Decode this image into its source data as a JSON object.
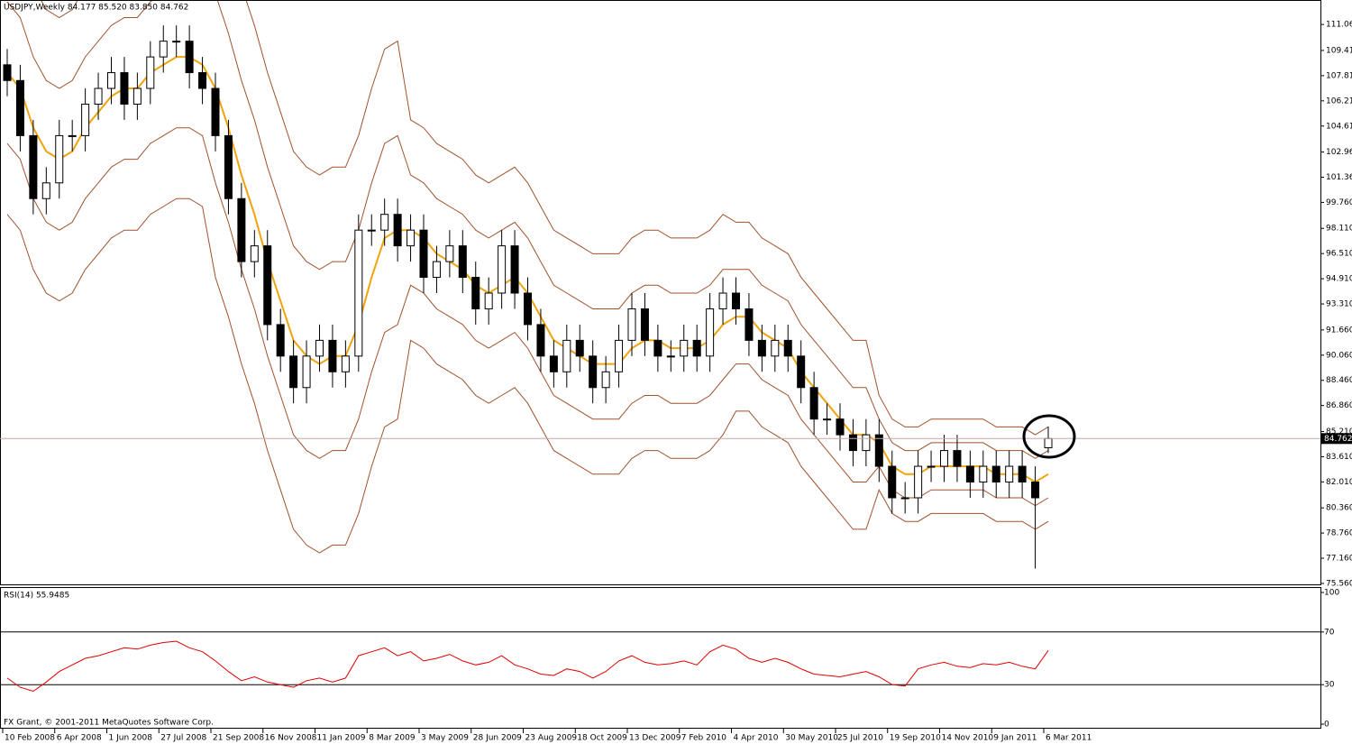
{
  "chart_data": [
    {
      "type": "candlestick",
      "title": "USDJPY,Weekly  84.177 85.520 83.850 84.762",
      "footer": "FX Grant, © 2001-2011 MetaQuotes Software Corp.",
      "categories": [
        "10 Feb 2008",
        null,
        null,
        null,
        "6 Apr 2008",
        null,
        null,
        null,
        "1 Jun 2008",
        null,
        null,
        null,
        "27 Jul 2008",
        null,
        null,
        null,
        "21 Sep 2008",
        null,
        null,
        null,
        "16 Nov 2008",
        null,
        null,
        null,
        "11 Jan 2009",
        null,
        null,
        null,
        "8 Mar 2009",
        null,
        null,
        null,
        "3 May 2009",
        null,
        null,
        null,
        "28 Jun 2009",
        null,
        null,
        null,
        "23 Aug 2009",
        null,
        null,
        null,
        "18 Oct 2009",
        null,
        null,
        null,
        "13 Dec 2009",
        null,
        null,
        null,
        "7 Feb 2010",
        null,
        null,
        null,
        "4 Apr 2010",
        null,
        null,
        null,
        "30 May 2010",
        null,
        null,
        null,
        "25 Jul 2010",
        null,
        null,
        null,
        "19 Sep 2010",
        null,
        null,
        null,
        "14 Nov 2010",
        null,
        null,
        null,
        "9 Jan 2011",
        null,
        null,
        null,
        "6 Mar 2011"
      ],
      "open": [
        108.5,
        107.5,
        104,
        100,
        101,
        104,
        104,
        106,
        107,
        108,
        106,
        107,
        109,
        110,
        110,
        108,
        107,
        104,
        100,
        96,
        97,
        92,
        90,
        88,
        90,
        91,
        89,
        90,
        98,
        98,
        99,
        97,
        98,
        95,
        96,
        97,
        95,
        93,
        94,
        97,
        94,
        92,
        90,
        89,
        91,
        90,
        88,
        89,
        91,
        93,
        91,
        90,
        90,
        91,
        90,
        93,
        94,
        93,
        91,
        90,
        91,
        90,
        88,
        86,
        86,
        85,
        84,
        85,
        83,
        81,
        81,
        83,
        83,
        84,
        83,
        82,
        83,
        82,
        83,
        82,
        84.177
      ],
      "high": [
        109.5,
        108.5,
        105,
        102,
        105,
        105,
        107,
        108,
        109,
        109,
        108,
        110,
        111,
        111,
        111,
        109,
        108,
        105,
        101,
        98,
        98,
        93,
        91,
        91,
        92,
        92,
        91,
        99,
        99,
        100,
        100,
        99,
        99,
        97,
        98,
        98,
        96,
        95,
        98,
        98,
        95,
        93,
        91,
        92,
        92,
        91,
        90,
        92,
        94,
        94,
        92,
        91,
        92,
        92,
        94,
        95,
        95,
        94,
        92,
        92,
        92,
        91,
        89,
        87,
        87,
        86,
        86,
        86,
        84,
        82,
        84,
        84,
        85,
        85,
        84,
        84,
        84,
        84,
        84,
        83,
        85.52
      ],
      "low": [
        106.5,
        103,
        99,
        99,
        100,
        103,
        103,
        105,
        106,
        105,
        105,
        106,
        108,
        109,
        107,
        106,
        103,
        99,
        95,
        95,
        91,
        89,
        87,
        87,
        89,
        88,
        88,
        89,
        97,
        97,
        96,
        96,
        94,
        94,
        95,
        94,
        92,
        92,
        93,
        93,
        91,
        89,
        88,
        88,
        89,
        87,
        87,
        88,
        90,
        90,
        89,
        89,
        89,
        89,
        89,
        92,
        92,
        90,
        89,
        89,
        89,
        87,
        85,
        85,
        84,
        83,
        83,
        82,
        80,
        80,
        80,
        82,
        82,
        82,
        81,
        81,
        81,
        81,
        81,
        76.5,
        83.85
      ],
      "close": [
        107.5,
        104,
        100,
        101,
        104,
        104,
        106,
        107,
        108,
        106,
        107,
        109,
        110,
        110,
        108,
        107,
        104,
        100,
        96,
        97,
        92,
        90,
        88,
        90,
        91,
        89,
        90,
        98,
        98,
        99,
        97,
        98,
        95,
        96,
        97,
        95,
        93,
        94,
        97,
        94,
        92,
        90,
        89,
        91,
        90,
        88,
        89,
        91,
        93,
        91,
        90,
        90,
        91,
        90,
        93,
        94,
        93,
        91,
        90,
        91,
        90,
        88,
        86,
        86,
        85,
        84,
        85,
        83,
        81,
        81,
        83,
        83,
        84,
        83,
        82,
        83,
        82,
        83,
        82,
        81,
        84.762
      ],
      "overlays": [
        {
          "color": "#f0a30a",
          "values": [
            108,
            107,
            104.5,
            103,
            102.5,
            103,
            104.5,
            105.5,
            106.5,
            107,
            107,
            108,
            108.5,
            109,
            109,
            108.5,
            107,
            104.5,
            101.5,
            99,
            96,
            93.5,
            91,
            90,
            89.5,
            90,
            90,
            92,
            95,
            97.5,
            98,
            98,
            97.5,
            96.5,
            96,
            95.5,
            94.5,
            94,
            94.5,
            95,
            94,
            92.5,
            91,
            90.5,
            90,
            89.5,
            89.5,
            89.5,
            90.5,
            91,
            91,
            90.5,
            90.5,
            90.5,
            91,
            92,
            92.5,
            92.5,
            91.5,
            91,
            90.5,
            89,
            88,
            87,
            86,
            85,
            85,
            84.5,
            83,
            82.5,
            82.5,
            83,
            83,
            83,
            83,
            83,
            82.5,
            82.5,
            82.5,
            82,
            82.5
          ]
        },
        {
          "color": "#a0522d",
          "values": [
            112.5,
            111.5,
            109,
            107.5,
            107,
            107.5,
            109,
            110,
            111,
            111.5,
            111.5,
            112.5,
            113,
            113.5,
            113.5,
            113,
            113,
            110.5,
            107.5,
            105,
            102,
            99.5,
            97,
            96,
            95.5,
            96,
            96,
            98,
            101,
            103.5,
            104,
            101.5,
            101,
            100,
            99.5,
            99,
            98,
            97.5,
            98,
            98.5,
            97.5,
            96,
            94.5,
            94,
            93.5,
            93,
            93,
            93,
            94,
            94.5,
            94.5,
            94,
            94,
            94,
            94.5,
            95.5,
            95.5,
            95.5,
            94.5,
            94,
            93.5,
            92,
            91,
            90,
            89,
            88,
            88,
            86,
            84.5,
            84,
            84,
            84.5,
            84.5,
            84.5,
            84.5,
            84.5,
            84,
            84,
            84,
            83.5,
            84
          ]
        },
        {
          "color": "#a0522d",
          "values": [
            103.5,
            102.5,
            100,
            98.5,
            98,
            98.5,
            100,
            101,
            102,
            102.5,
            102.5,
            103.5,
            104,
            104.5,
            104.5,
            104,
            101,
            98.5,
            95.5,
            93,
            90,
            87.5,
            85,
            84,
            83.5,
            84,
            84,
            86,
            89,
            91.5,
            92,
            94.5,
            94,
            93,
            92.5,
            92,
            91,
            90.5,
            91,
            91.5,
            90.5,
            89,
            87.5,
            87,
            86.5,
            86,
            86,
            86,
            87,
            87.5,
            87.5,
            87,
            87,
            87,
            87.5,
            88.5,
            89.5,
            89.5,
            88.5,
            88,
            87.5,
            86,
            85,
            84,
            83,
            82,
            82,
            83,
            81.5,
            81,
            81,
            81.5,
            81.5,
            81.5,
            81.5,
            81.5,
            81,
            81,
            81,
            80.5,
            81
          ]
        },
        {
          "color": "#a0522d",
          "values": [
            117,
            116,
            113.5,
            112,
            111.5,
            112,
            113.5,
            114.5,
            115.5,
            116,
            116,
            117,
            117.5,
            118,
            118,
            117.5,
            119,
            116.5,
            113.5,
            111,
            108,
            105.5,
            103,
            102,
            101.5,
            102,
            102,
            104,
            107,
            109.5,
            110,
            105,
            104.5,
            103.5,
            103,
            102.5,
            101.5,
            101,
            101.5,
            102,
            101,
            99.5,
            98,
            97.5,
            97,
            96.5,
            96.5,
            96.5,
            97.5,
            98,
            98,
            97.5,
            97.5,
            97.5,
            98,
            99,
            98.5,
            98.5,
            97.5,
            97,
            96.5,
            95,
            94,
            93,
            92,
            91,
            91,
            87.5,
            86,
            85.5,
            85.5,
            86,
            86,
            86,
            86,
            86,
            85.5,
            85.5,
            85.5,
            85,
            85.5
          ]
        },
        {
          "color": "#a0522d",
          "values": [
            99,
            98,
            95.5,
            94,
            93.5,
            94,
            95.5,
            96.5,
            97.5,
            98,
            98,
            99,
            99.5,
            100,
            100,
            99.5,
            95,
            92.5,
            89.5,
            87,
            84,
            81.5,
            79,
            78,
            77.5,
            78,
            78,
            80,
            83,
            85.5,
            86,
            91,
            90.5,
            89.5,
            89,
            88.5,
            87.5,
            87,
            87.5,
            88,
            87,
            85.5,
            84,
            83.5,
            83,
            82.5,
            82.5,
            82.5,
            83.5,
            84,
            84,
            83.5,
            83.5,
            83.5,
            84,
            85,
            86.5,
            86.5,
            85.5,
            85,
            84.5,
            83,
            82,
            81,
            80,
            79,
            79,
            81.5,
            80,
            79.5,
            79.5,
            80,
            80,
            80,
            80,
            80,
            79.5,
            79.5,
            79.5,
            79,
            79.5
          ]
        }
      ],
      "ylim": [
        75.5,
        112.5
      ],
      "yticks": [
        {
          "value": 111.06,
          "label": "111.060"
        },
        {
          "value": 109.41,
          "label": "109.410"
        },
        {
          "value": 107.81,
          "label": "107.810"
        },
        {
          "value": 106.21,
          "label": "106.210"
        },
        {
          "value": 104.61,
          "label": "104.610"
        },
        {
          "value": 102.96,
          "label": "102.960"
        },
        {
          "value": 101.36,
          "label": "101.360"
        },
        {
          "value": 99.76,
          "label": "99.760"
        },
        {
          "value": 98.11,
          "label": "98.110"
        },
        {
          "value": 96.51,
          "label": "96.510"
        },
        {
          "value": 94.91,
          "label": "94.910"
        },
        {
          "value": 93.31,
          "label": "93.310"
        },
        {
          "value": 91.66,
          "label": "91.660"
        },
        {
          "value": 90.06,
          "label": "90.060"
        },
        {
          "value": 88.46,
          "label": "88.460"
        },
        {
          "value": 86.86,
          "label": "86.860"
        },
        {
          "value": 85.21,
          "label": "85.210"
        },
        {
          "value": 83.61,
          "label": "83.610"
        },
        {
          "value": 82.01,
          "label": "82.010"
        },
        {
          "value": 80.36,
          "label": "80.360"
        },
        {
          "value": 78.76,
          "label": "78.760"
        },
        {
          "value": 77.16,
          "label": "77.160"
        },
        {
          "value": 75.56,
          "label": "75.560"
        }
      ]
    },
    {
      "type": "line",
      "title": "RSI(14) 55.9485",
      "color": "#e00000",
      "values": [
        35,
        28,
        25,
        32,
        40,
        45,
        50,
        52,
        55,
        58,
        57,
        60,
        62,
        63,
        58,
        55,
        48,
        40,
        33,
        36,
        32,
        30,
        28,
        33,
        35,
        32,
        35,
        52,
        55,
        58,
        52,
        55,
        48,
        50,
        53,
        48,
        45,
        47,
        52,
        45,
        42,
        38,
        37,
        42,
        40,
        35,
        40,
        48,
        52,
        47,
        45,
        46,
        48,
        45,
        55,
        60,
        57,
        50,
        47,
        50,
        47,
        42,
        38,
        37,
        36,
        38,
        40,
        36,
        30,
        29,
        42,
        45,
        47,
        44,
        43,
        46,
        45,
        47,
        44,
        42,
        55.9485
      ],
      "ylim": [
        -3.4,
        104.1
      ],
      "yticks": [
        0,
        30,
        70,
        100
      ],
      "levels": [
        30,
        70
      ]
    }
  ]
}
